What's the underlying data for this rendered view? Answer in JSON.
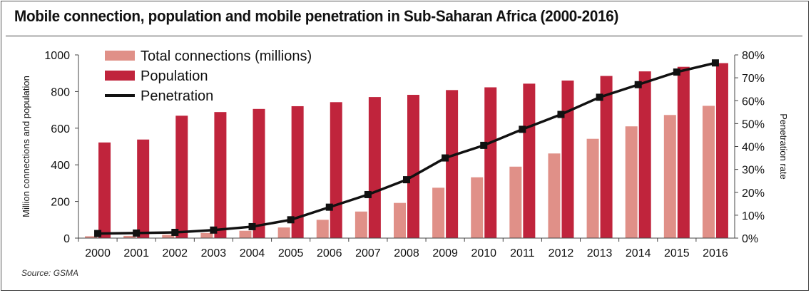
{
  "title": "Mobile connection, population and mobile penetration in Sub-Saharan Africa (2000-2016)",
  "source": "Source: GSMA",
  "colors": {
    "connections": "#e09088",
    "population": "#c0243c",
    "penetration": "#111111",
    "axis": "#444444"
  },
  "chart_data": {
    "type": "bar",
    "categories": [
      "2000",
      "2001",
      "2002",
      "2003",
      "2004",
      "2005",
      "2006",
      "2007",
      "2008",
      "2009",
      "2010",
      "2011",
      "2012",
      "2013",
      "2014",
      "2015",
      "2016"
    ],
    "series": [
      {
        "name": "Total connections (millions)",
        "type": "bar",
        "axis": "left",
        "values": [
          10,
          12,
          18,
          28,
          40,
          58,
          100,
          145,
          192,
          275,
          332,
          390,
          462,
          542,
          610,
          672,
          722
        ]
      },
      {
        "name": "Population",
        "type": "bar",
        "axis": "left",
        "values": [
          522,
          538,
          668,
          688,
          705,
          720,
          742,
          770,
          782,
          808,
          823,
          843,
          860,
          885,
          910,
          935,
          955
        ]
      },
      {
        "name": "Penetration",
        "type": "line",
        "axis": "right",
        "values": [
          0.02,
          0.022,
          0.025,
          0.035,
          0.05,
          0.08,
          0.135,
          0.19,
          0.255,
          0.35,
          0.405,
          0.475,
          0.54,
          0.615,
          0.67,
          0.725,
          0.765
        ]
      }
    ],
    "ylabel": "Million connections and population",
    "y2label": "Penetration rate",
    "ylim": [
      0,
      1000
    ],
    "yticks": [
      "0",
      "200",
      "400",
      "600",
      "800",
      "1000"
    ],
    "y2lim": [
      0,
      0.8
    ],
    "y2ticks": [
      "0%",
      "10%",
      "20%",
      "30%",
      "40%",
      "50%",
      "60%",
      "70%",
      "80%"
    ],
    "legend": [
      "Total connections (millions)",
      "Population",
      "Penetration"
    ],
    "legend_position": "top-left",
    "grid": false
  }
}
